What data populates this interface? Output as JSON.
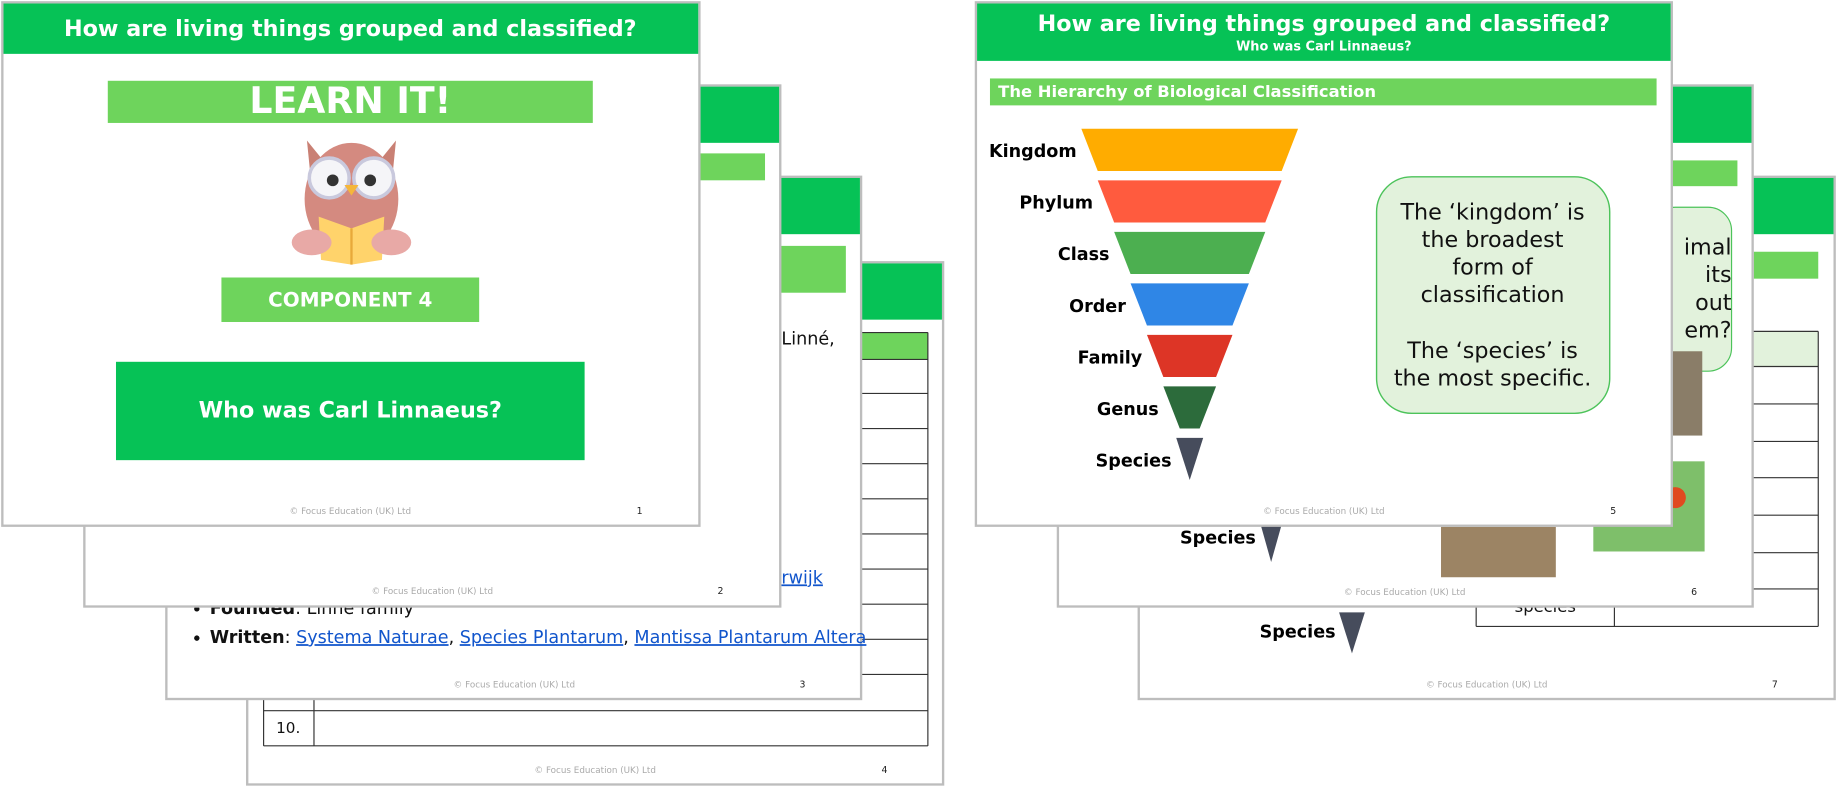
{
  "left_deck": {
    "slide_1": {
      "title": "How are living things grouped and classified?",
      "banner": "LEARN IT!",
      "component": "COMPONENT 4",
      "question": "Who was Carl Linnaeus?",
      "footer": "© Focus Education (UK) Ltd",
      "number": "1"
    },
    "slide_2": {
      "footer": "© Focus Education (UK) Ltd",
      "number": "2"
    },
    "slide_3": {
      "fragments": [
        "Linné,",
        "rwijk"
      ],
      "founded": [
        {
          "text": "Founded",
          "style": "bold"
        },
        {
          "text": ": Linné family"
        }
      ],
      "written": [
        {
          "text": "Written",
          "style": "bold"
        },
        {
          "text": ": "
        },
        {
          "text": "Systema Naturae",
          "style": "link"
        },
        {
          "text": ", "
        },
        {
          "text": "Species Plantarum",
          "style": "link"
        },
        {
          "text": ", "
        },
        {
          "text": "Mantissa Plantarum Altera",
          "style": "link"
        }
      ],
      "footer": "© Focus Education (UK) Ltd",
      "number": "3"
    },
    "slide_4": {
      "row_label": "10.",
      "footer": "© Focus Education (UK) Ltd",
      "number": "4"
    }
  },
  "right_deck": {
    "slide_5": {
      "title": "How are living things grouped and classified?",
      "subtitle": "Who was Carl Linnaeus?",
      "heading": "The Hierarchy of Biological Classification",
      "levels": [
        {
          "name": "Kingdom",
          "color": "#FFAC00"
        },
        {
          "name": "Phylum",
          "color": "#FF5B3E"
        },
        {
          "name": "Class",
          "color": "#4CAF50"
        },
        {
          "name": "Order",
          "color": "#2F86E6"
        },
        {
          "name": "Family",
          "color": "#DD3526"
        },
        {
          "name": "Genus",
          "color": "#2C6B3B"
        },
        {
          "name": "Species",
          "color": "#464C5C"
        }
      ],
      "callout_1": [
        "The ‘kingdom’ is",
        "the broadest",
        "form of",
        "classification"
      ],
      "callout_2": [
        "The ‘species’ is",
        "the most specific."
      ],
      "footer": "© Focus Education (UK) Ltd",
      "number": "5"
    },
    "slide_6": {
      "level": "Species",
      "fragments": [
        "imal",
        "its",
        "out",
        "em?"
      ],
      "footer": "© Focus Education (UK) Ltd",
      "number": "6"
    },
    "slide_7": {
      "level": "Species",
      "cell": "species",
      "footer": "© Focus Education (UK) Ltd",
      "number": "7"
    }
  }
}
